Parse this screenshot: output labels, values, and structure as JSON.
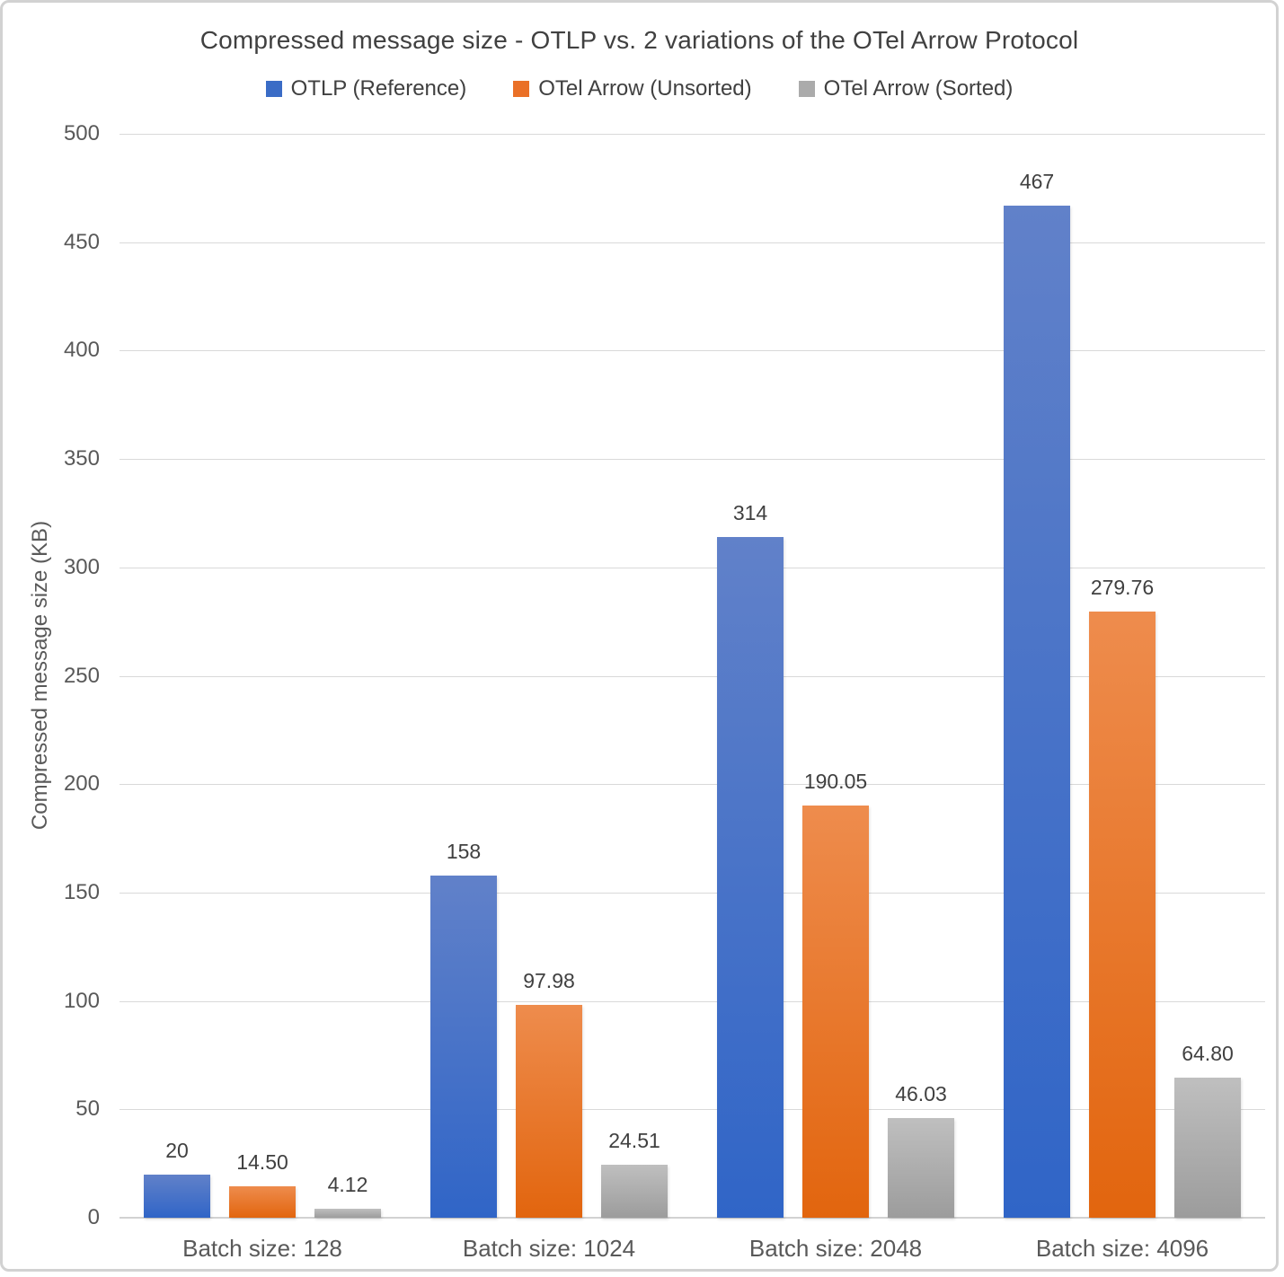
{
  "chart_data": {
    "type": "bar",
    "title": "Compressed message size - OTLP vs. 2 variations of the OTel Arrow Protocol",
    "ylabel": "Compressed message size (KB)",
    "xlabel": "",
    "categories": [
      "Batch size: 128",
      "Batch size: 1024",
      "Batch size: 2048",
      "Batch size: 4096"
    ],
    "series": [
      {
        "name": "OTLP (Reference)",
        "values": [
          20,
          158,
          314,
          467
        ],
        "value_labels": [
          "20",
          "158",
          "314",
          "467"
        ],
        "legend_color": "#3a6cc6",
        "gradient_top": "#6181c9",
        "gradient_bottom": "#3065c7"
      },
      {
        "name": "OTel Arrow (Unsorted)",
        "values": [
          14.5,
          97.98,
          190.05,
          279.76
        ],
        "value_labels": [
          "14.50",
          "97.98",
          "190.05",
          "279.76"
        ],
        "legend_color": "#ea7027",
        "gradient_top": "#ee8c4d",
        "gradient_bottom": "#e2650e"
      },
      {
        "name": "OTel Arrow (Sorted)",
        "values": [
          4.12,
          24.51,
          46.03,
          64.8
        ],
        "value_labels": [
          "4.12",
          "24.51",
          "46.03",
          "64.80"
        ],
        "legend_color": "#ababab",
        "gradient_top": "#bfbfbf",
        "gradient_bottom": "#9c9c9c"
      }
    ],
    "ylim": [
      0,
      500
    ],
    "ytick_step": 50,
    "yticks": [
      "0",
      "50",
      "100",
      "150",
      "200",
      "250",
      "300",
      "350",
      "400",
      "450",
      "500"
    ],
    "grid": true,
    "legend_position": "top",
    "colors": {
      "gridline": "#d9d9d9",
      "axis_text": "#595959",
      "title_text": "#404040",
      "value_label_text": "#404040"
    }
  }
}
